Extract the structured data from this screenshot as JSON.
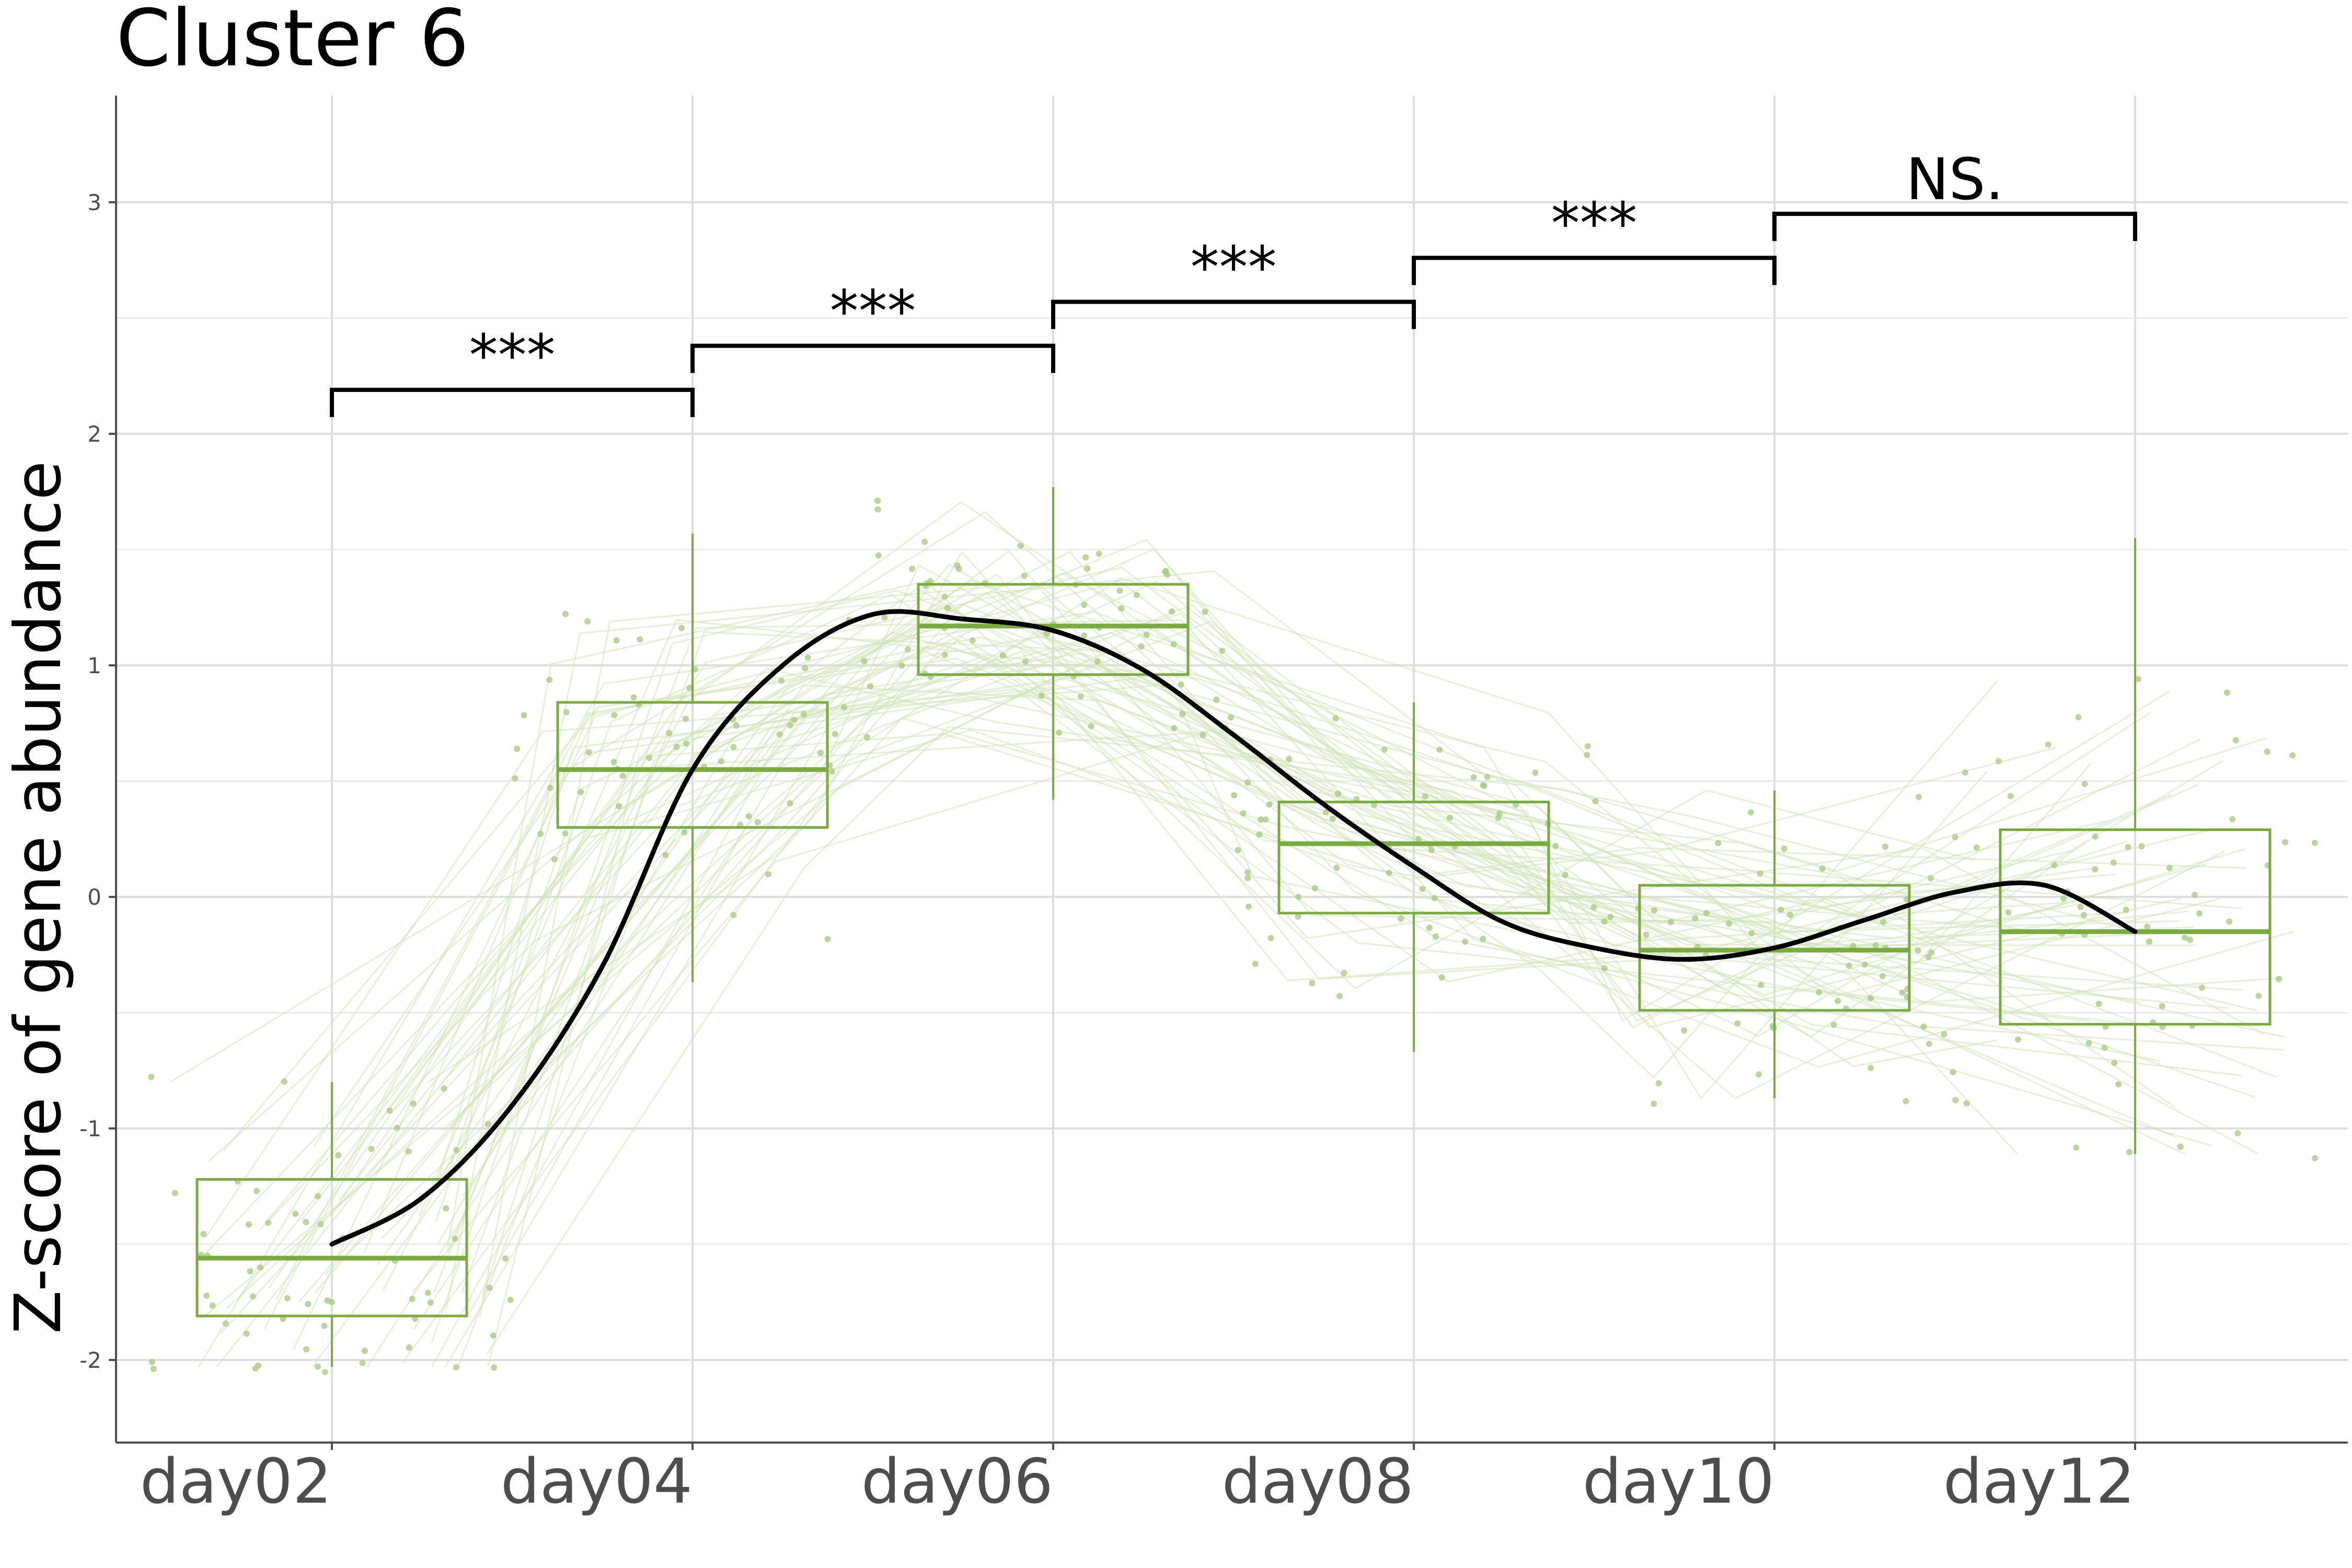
{
  "chart_data": {
    "type": "box",
    "title": "Cluster 6",
    "xlabel": "",
    "ylabel": "Z-score of gene abundance",
    "categories": [
      "day02",
      "day04",
      "day06",
      "day08",
      "day10",
      "day12"
    ],
    "ylim": [
      -2.35,
      3.48
    ],
    "y_ticks": [
      -2,
      -1,
      0,
      1,
      2,
      3
    ],
    "y_tick_labels": [
      "-2",
      "-1",
      "0",
      "1",
      "2",
      "3"
    ],
    "grid": true,
    "boxes": [
      {
        "category": "day02",
        "whisker_low": -2.03,
        "q1": -1.81,
        "median": -1.56,
        "q3": -1.22,
        "whisker_high": -0.8
      },
      {
        "category": "day04",
        "whisker_low": -0.37,
        "q1": 0.3,
        "median": 0.55,
        "q3": 0.84,
        "whisker_high": 1.57
      },
      {
        "category": "day06",
        "whisker_low": 0.42,
        "q1": 0.96,
        "median": 1.17,
        "q3": 1.35,
        "whisker_high": 1.77
      },
      {
        "category": "day08",
        "whisker_low": -0.67,
        "q1": -0.07,
        "median": 0.23,
        "q3": 0.41,
        "whisker_high": 0.84
      },
      {
        "category": "day10",
        "whisker_low": -0.87,
        "q1": -0.49,
        "median": -0.23,
        "q3": 0.05,
        "whisker_high": 0.46
      },
      {
        "category": "day12",
        "whisker_low": -1.11,
        "q1": -0.55,
        "median": -0.15,
        "q3": 0.29,
        "whisker_high": 1.55
      }
    ],
    "trend_line": {
      "x": [
        0,
        0.25,
        0.5,
        0.75,
        1,
        1.25,
        1.5,
        1.75,
        2,
        2.25,
        2.5,
        2.75,
        3,
        3.25,
        3.5,
        3.75,
        4,
        4.25,
        4.5,
        4.75,
        5
      ],
      "y": [
        -1.5,
        -1.3,
        -0.9,
        -0.3,
        0.55,
        1.0,
        1.22,
        1.2,
        1.15,
        0.98,
        0.7,
        0.4,
        0.13,
        -0.11,
        -0.22,
        -0.27,
        -0.22,
        -0.1,
        0.02,
        0.05,
        -0.15
      ]
    },
    "significance": [
      {
        "from": "day02",
        "to": "day04",
        "label": "***",
        "y": 2.19
      },
      {
        "from": "day04",
        "to": "day06",
        "label": "***",
        "y": 2.38
      },
      {
        "from": "day06",
        "to": "day08",
        "label": "***",
        "y": 2.57
      },
      {
        "from": "day08",
        "to": "day10",
        "label": "***",
        "y": 2.76
      },
      {
        "from": "day10",
        "to": "day12",
        "label": "NS.",
        "y": 2.95
      }
    ],
    "colors": {
      "box": "#7aab3f",
      "points": "#a9cc85",
      "gene_lines": "#cfe3b8",
      "trend": "#000000",
      "grid": "#dedede",
      "axis": "#4d4d4d"
    }
  }
}
